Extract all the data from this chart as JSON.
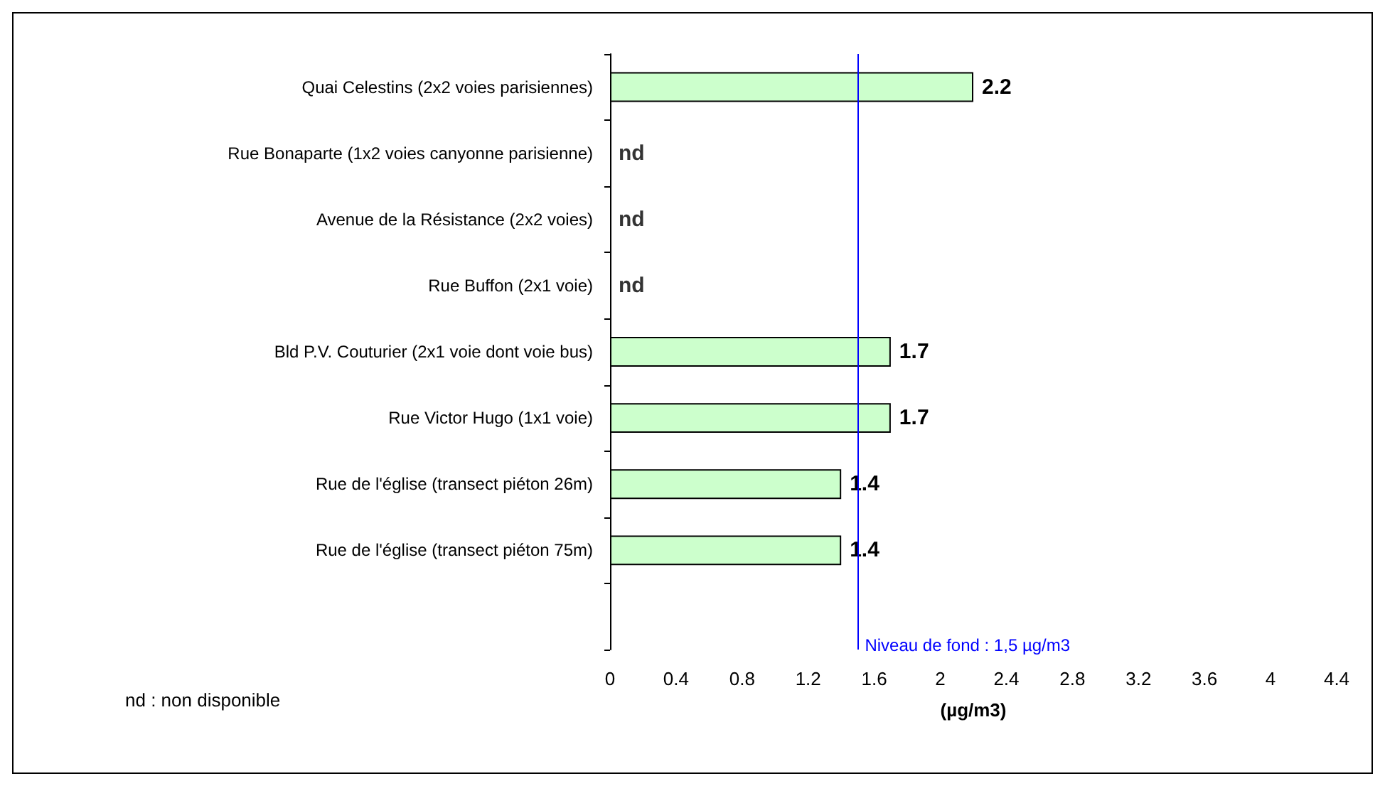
{
  "chart_data": {
    "type": "bar",
    "orientation": "horizontal",
    "xlabel": "(µg/m3)",
    "categories": [
      "Quai Celestins (2x2 voies parisiennes)",
      "Rue Bonaparte (1x2 voies canyonne parisienne)",
      "Avenue de la Résistance (2x2 voies)",
      "Rue Buffon (2x1 voie)",
      "Bld P.V. Couturier (2x1 voie dont voie bus)",
      "Rue Victor Hugo (1x1 voie)",
      "Rue de l'église (transect piéton 26m)",
      "Rue de l'église (transect piéton 75m)",
      null
    ],
    "values": [
      2.2,
      null,
      null,
      null,
      1.7,
      1.7,
      1.4,
      1.4,
      null
    ],
    "value_labels": [
      "2.2",
      "nd",
      "nd",
      "nd",
      "1.7",
      "1.7",
      "1.4",
      "1.4",
      null
    ],
    "color": "#ccffcc",
    "xlim": [
      0,
      4.4
    ],
    "xticks": [
      0,
      0.4,
      0.8,
      1.2,
      1.6,
      2,
      2.4,
      2.8,
      3.2,
      3.6,
      4,
      4.4
    ],
    "ref_lines": [
      {
        "axis": "x",
        "value": 1.5,
        "label": "Niveau de fond : 1,5 µg/m3",
        "color": "#0000ff"
      }
    ],
    "annotations": [
      "nd : non disponible"
    ],
    "grid": false
  }
}
